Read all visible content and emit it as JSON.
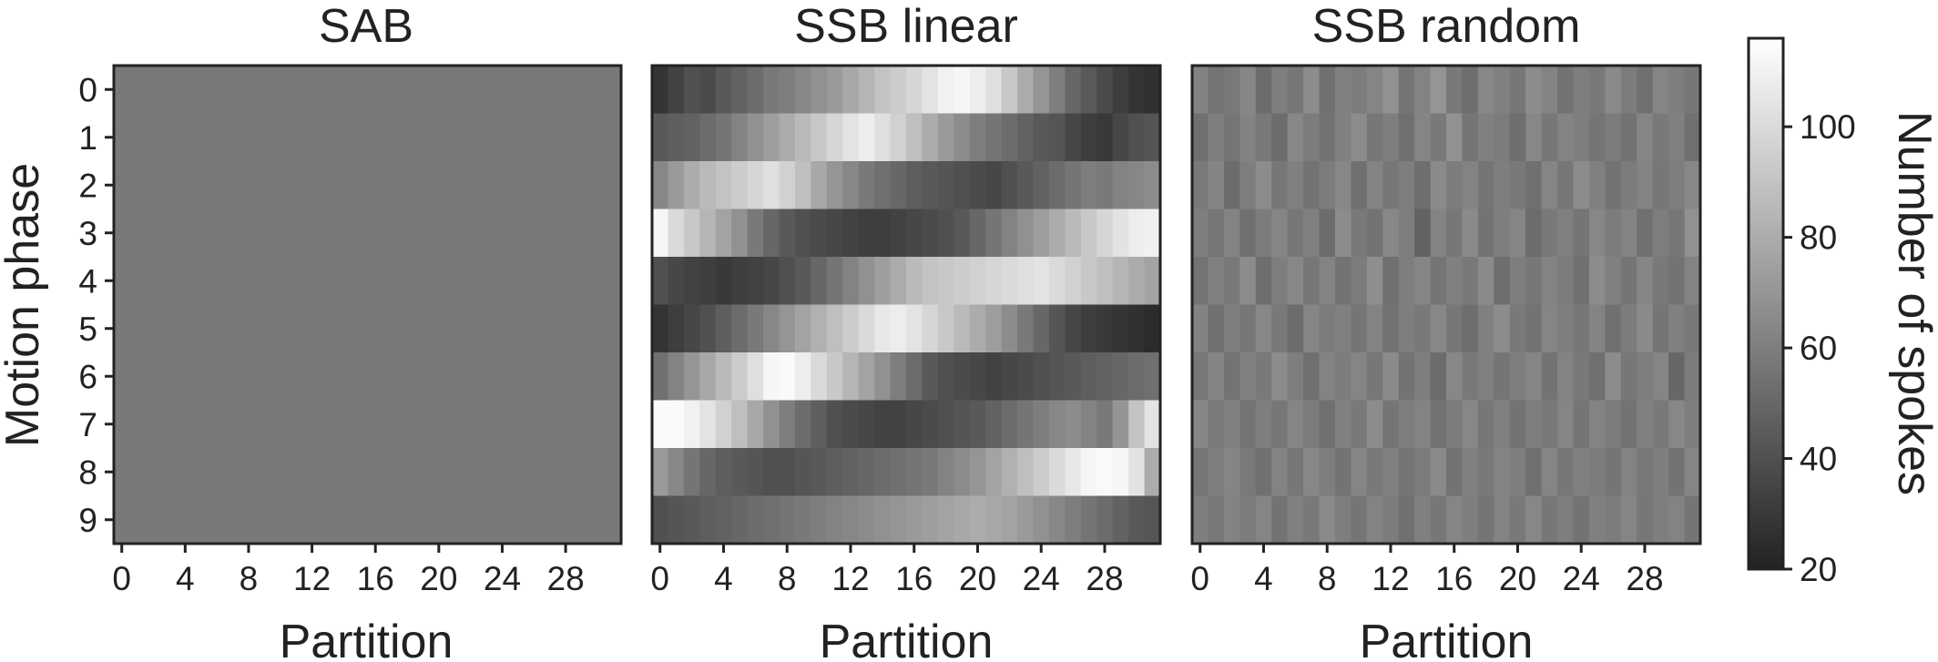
{
  "chart_data": {
    "type": "heatmap",
    "colormap": "grayscale",
    "colorbar": {
      "label": "Number of spokes",
      "range": [
        20,
        116
      ],
      "ticks": [
        20,
        40,
        60,
        80,
        100
      ]
    },
    "panels": [
      {
        "title": "SAB",
        "xlabel": "Partition",
        "ylabel": "Motion phase",
        "n_partitions": 32,
        "n_phases": 10,
        "x_ticks": [
          0,
          4,
          8,
          12,
          16,
          20,
          24,
          28
        ],
        "y_ticks": [
          0,
          1,
          2,
          3,
          4,
          5,
          6,
          7,
          8,
          9
        ],
        "values": [
          [
            58,
            58,
            58,
            58,
            58,
            58,
            58,
            58,
            58,
            58,
            58,
            58,
            58,
            58,
            58,
            58,
            58,
            58,
            58,
            58,
            58,
            58,
            58,
            58,
            58,
            58,
            58,
            58,
            58,
            58,
            58,
            58
          ],
          [
            58,
            58,
            58,
            58,
            58,
            58,
            58,
            58,
            58,
            58,
            58,
            58,
            58,
            58,
            58,
            58,
            58,
            58,
            58,
            58,
            58,
            58,
            58,
            58,
            58,
            58,
            58,
            58,
            58,
            58,
            58,
            58
          ],
          [
            58,
            58,
            58,
            58,
            58,
            58,
            58,
            58,
            58,
            58,
            58,
            58,
            58,
            58,
            58,
            58,
            58,
            58,
            58,
            58,
            58,
            58,
            58,
            58,
            58,
            58,
            58,
            58,
            58,
            58,
            58,
            58
          ],
          [
            58,
            58,
            58,
            58,
            58,
            58,
            58,
            58,
            58,
            58,
            58,
            58,
            58,
            58,
            58,
            58,
            58,
            58,
            58,
            58,
            58,
            58,
            58,
            58,
            58,
            58,
            58,
            58,
            58,
            58,
            58,
            58
          ],
          [
            58,
            58,
            58,
            58,
            58,
            58,
            58,
            58,
            58,
            58,
            58,
            58,
            58,
            58,
            58,
            58,
            58,
            58,
            58,
            58,
            58,
            58,
            58,
            58,
            58,
            58,
            58,
            58,
            58,
            58,
            58,
            58
          ],
          [
            58,
            58,
            58,
            58,
            58,
            58,
            58,
            58,
            58,
            58,
            58,
            58,
            58,
            58,
            58,
            58,
            58,
            58,
            58,
            58,
            58,
            58,
            58,
            58,
            58,
            58,
            58,
            58,
            58,
            58,
            58,
            58
          ],
          [
            58,
            58,
            58,
            58,
            58,
            58,
            58,
            58,
            58,
            58,
            58,
            58,
            58,
            58,
            58,
            58,
            58,
            58,
            58,
            58,
            58,
            58,
            58,
            58,
            58,
            58,
            58,
            58,
            58,
            58,
            58,
            58
          ],
          [
            58,
            58,
            58,
            58,
            58,
            58,
            58,
            58,
            58,
            58,
            58,
            58,
            58,
            58,
            58,
            58,
            58,
            58,
            58,
            58,
            58,
            58,
            58,
            58,
            58,
            58,
            58,
            58,
            58,
            58,
            58,
            58
          ],
          [
            58,
            58,
            58,
            58,
            58,
            58,
            58,
            58,
            58,
            58,
            58,
            58,
            58,
            58,
            58,
            58,
            58,
            58,
            58,
            58,
            58,
            58,
            58,
            58,
            58,
            58,
            58,
            58,
            58,
            58,
            58,
            58
          ],
          [
            58,
            58,
            58,
            58,
            58,
            58,
            58,
            58,
            58,
            58,
            58,
            58,
            58,
            58,
            58,
            58,
            58,
            58,
            58,
            58,
            58,
            58,
            58,
            58,
            58,
            58,
            58,
            58,
            58,
            58,
            58,
            58
          ]
        ]
      },
      {
        "title": "SSB linear",
        "xlabel": "Partition",
        "n_partitions": 32,
        "n_phases": 10,
        "x_ticks": [
          0,
          4,
          8,
          12,
          16,
          20,
          24,
          28
        ],
        "values": [
          [
            28,
            34,
            40,
            38,
            44,
            48,
            52,
            58,
            60,
            64,
            68,
            72,
            78,
            84,
            90,
            94,
            98,
            104,
            110,
            112,
            108,
            102,
            92,
            80,
            70,
            60,
            50,
            44,
            38,
            32,
            28,
            26
          ],
          [
            44,
            46,
            48,
            52,
            56,
            62,
            68,
            74,
            80,
            86,
            92,
            98,
            104,
            108,
            102,
            96,
            88,
            80,
            72,
            66,
            60,
            56,
            52,
            48,
            44,
            42,
            36,
            32,
            30,
            36,
            40,
            42
          ],
          [
            64,
            72,
            80,
            86,
            90,
            94,
            98,
            102,
            96,
            88,
            78,
            70,
            64,
            58,
            54,
            50,
            46,
            44,
            42,
            40,
            38,
            36,
            40,
            44,
            48,
            52,
            56,
            60,
            58,
            62,
            64,
            66
          ],
          [
            112,
            100,
            92,
            84,
            76,
            68,
            58,
            50,
            44,
            40,
            38,
            36,
            34,
            32,
            32,
            34,
            36,
            38,
            40,
            44,
            50,
            56,
            62,
            68,
            74,
            80,
            86,
            92,
            98,
            104,
            108,
            110
          ],
          [
            40,
            36,
            34,
            32,
            30,
            32,
            34,
            36,
            40,
            44,
            50,
            56,
            62,
            68,
            74,
            80,
            86,
            90,
            92,
            94,
            96,
            98,
            100,
            102,
            104,
            100,
            96,
            92,
            88,
            84,
            80,
            76
          ],
          [
            28,
            32,
            36,
            40,
            46,
            52,
            58,
            64,
            70,
            76,
            82,
            88,
            94,
            100,
            106,
            108,
            104,
            98,
            92,
            86,
            80,
            74,
            66,
            58,
            50,
            42,
            36,
            32,
            30,
            28,
            26,
            24
          ],
          [
            54,
            62,
            70,
            78,
            86,
            94,
            102,
            112,
            114,
            108,
            100,
            92,
            84,
            76,
            68,
            60,
            52,
            44,
            40,
            38,
            36,
            34,
            36,
            38,
            40,
            42,
            44,
            46,
            48,
            50,
            52,
            54
          ],
          [
            114,
            114,
            110,
            104,
            96,
            88,
            78,
            68,
            60,
            52,
            46,
            40,
            38,
            36,
            34,
            34,
            36,
            38,
            40,
            42,
            44,
            48,
            52,
            56,
            60,
            64,
            66,
            62,
            58,
            70,
            90,
            104
          ],
          [
            72,
            64,
            56,
            50,
            46,
            44,
            42,
            40,
            40,
            42,
            44,
            46,
            48,
            50,
            52,
            54,
            56,
            58,
            62,
            66,
            70,
            76,
            82,
            88,
            94,
            100,
            106,
            112,
            114,
            112,
            104,
            80
          ],
          [
            40,
            42,
            44,
            46,
            48,
            50,
            52,
            54,
            56,
            58,
            60,
            62,
            64,
            66,
            68,
            70,
            72,
            74,
            76,
            78,
            80,
            78,
            76,
            72,
            68,
            64,
            60,
            56,
            52,
            48,
            44,
            42
          ]
        ]
      },
      {
        "title": "SSB random",
        "xlabel": "Partition",
        "n_partitions": 32,
        "n_phases": 10,
        "x_ticks": [
          0,
          4,
          8,
          12,
          16,
          20,
          24,
          28
        ],
        "values": [
          [
            62,
            55,
            58,
            64,
            52,
            60,
            57,
            66,
            54,
            61,
            59,
            63,
            68,
            56,
            62,
            70,
            58,
            53,
            64,
            61,
            57,
            66,
            62,
            55,
            60,
            58,
            65,
            59,
            54,
            63,
            60,
            57
          ],
          [
            54,
            60,
            56,
            62,
            58,
            52,
            64,
            59,
            55,
            61,
            66,
            57,
            60,
            54,
            63,
            58,
            68,
            56,
            61,
            59,
            53,
            64,
            57,
            62,
            60,
            56,
            59,
            55,
            63,
            58,
            61,
            54
          ],
          [
            58,
            63,
            52,
            60,
            66,
            57,
            61,
            55,
            59,
            64,
            54,
            62,
            57,
            60,
            53,
            65,
            59,
            62,
            56,
            60,
            58,
            54,
            63,
            57,
            66,
            61,
            55,
            59,
            62,
            57,
            60,
            64
          ],
          [
            60,
            56,
            62,
            54,
            59,
            63,
            57,
            61,
            52,
            66,
            58,
            55,
            64,
            60,
            48,
            62,
            57,
            65,
            55,
            60,
            63,
            52,
            58,
            61,
            56,
            64,
            59,
            62,
            54,
            60,
            57,
            68
          ],
          [
            55,
            61,
            58,
            66,
            53,
            60,
            64,
            57,
            62,
            55,
            59,
            67,
            54,
            60,
            63,
            56,
            61,
            58,
            65,
            53,
            60,
            57,
            62,
            59,
            54,
            66,
            61,
            56,
            63,
            58,
            55,
            62
          ],
          [
            62,
            54,
            60,
            57,
            64,
            58,
            52,
            63,
            59,
            61,
            56,
            62,
            55,
            60,
            58,
            64,
            57,
            53,
            61,
            66,
            58,
            55,
            63,
            60,
            57,
            62,
            54,
            59,
            65,
            56,
            61,
            58
          ],
          [
            57,
            63,
            55,
            61,
            58,
            66,
            60,
            54,
            62,
            59,
            63,
            57,
            65,
            55,
            60,
            52,
            64,
            58,
            61,
            56,
            60,
            63,
            55,
            62,
            58,
            54,
            66,
            57,
            60,
            63,
            50,
            59
          ],
          [
            64,
            58,
            61,
            55,
            60,
            57,
            63,
            59,
            54,
            61,
            58,
            66,
            56,
            60,
            62,
            55,
            59,
            64,
            57,
            61,
            55,
            60,
            58,
            63,
            56,
            62,
            59,
            55,
            61,
            58,
            64,
            60
          ],
          [
            56,
            60,
            63,
            58,
            54,
            62,
            57,
            64,
            60,
            55,
            63,
            58,
            61,
            56,
            59,
            65,
            55,
            61,
            58,
            62,
            60,
            54,
            63,
            57,
            61,
            59,
            56,
            62,
            58,
            60,
            55,
            63
          ],
          [
            60,
            57,
            62,
            59,
            63,
            55,
            61,
            58,
            65,
            60,
            56,
            62,
            59,
            54,
            61,
            57,
            63,
            60,
            56,
            62,
            58,
            64,
            57,
            60,
            55,
            61,
            59,
            63,
            57,
            60,
            62,
            56
          ]
        ]
      }
    ]
  }
}
